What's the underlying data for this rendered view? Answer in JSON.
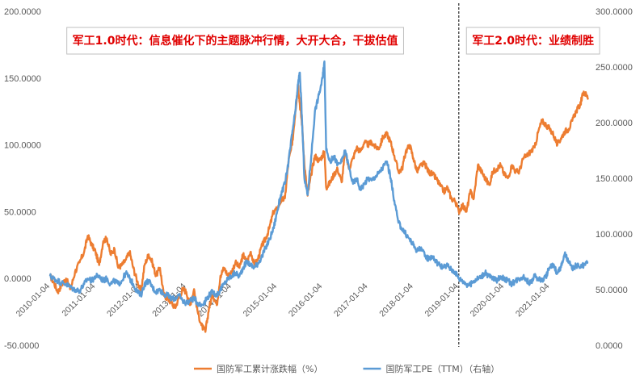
{
  "chart_data": {
    "type": "line",
    "title": "",
    "xlabel": "",
    "ylabel": "",
    "y_left": {
      "ylim": [
        -50,
        200
      ],
      "ticks": [
        "200.0000",
        "150.0000",
        "100.0000",
        "50.0000",
        "0.0000",
        "-50.0000"
      ],
      "tick_values": [
        200,
        150,
        100,
        50,
        0,
        -50
      ]
    },
    "y_right": {
      "ylim": [
        0,
        300
      ],
      "ticks": [
        "300.0000",
        "250.0000",
        "200.0000",
        "150.0000",
        "100.0000",
        "50.0000",
        "0.0000"
      ],
      "tick_values": [
        300,
        250,
        200,
        150,
        100,
        50,
        0
      ]
    },
    "x_ticks": [
      "2010-01-04",
      "2011-01-04",
      "2012-01-04",
      "2013-01-04",
      "2014-01-04",
      "2015-01-04",
      "2016-01-04",
      "2017-01-04",
      "2018-01-04",
      "2019-01-04",
      "2020-01-04",
      "2021-01-04"
    ],
    "x_tick_values": [
      2010.0,
      2011.0,
      2012.0,
      2013.0,
      2014.0,
      2015.0,
      2016.0,
      2017.0,
      2018.0,
      2019.0,
      2020.0,
      2021.0
    ],
    "x_range": [
      2010.0,
      2021.85
    ],
    "divider_x": 2019.0,
    "annotations": [
      {
        "text": "军工1.0时代：信息催化下的主题脉冲行情，大开大合，干拔估值",
        "anchor_x": 2010.35
      },
      {
        "text": "军工2.0时代：业绩制胜",
        "anchor_x": 2019.15
      }
    ],
    "legend_position": "bottom",
    "series": [
      {
        "name": "国防军工累计涨跌幅（%）",
        "axis": "left",
        "color": "#ed7d31",
        "x": [
          2010.0,
          2010.08,
          2010.17,
          2010.25,
          2010.35,
          2010.45,
          2010.55,
          2010.65,
          2010.75,
          2010.83,
          2010.92,
          2011.0,
          2011.08,
          2011.17,
          2011.25,
          2011.33,
          2011.42,
          2011.5,
          2011.58,
          2011.67,
          2011.75,
          2011.83,
          2011.92,
          2012.0,
          2012.08,
          2012.17,
          2012.25,
          2012.33,
          2012.42,
          2012.5,
          2012.58,
          2012.67,
          2012.75,
          2012.83,
          2012.92,
          2013.0,
          2013.08,
          2013.17,
          2013.25,
          2013.33,
          2013.42,
          2013.5,
          2013.58,
          2013.67,
          2013.75,
          2013.83,
          2013.92,
          2014.0,
          2014.08,
          2014.17,
          2014.25,
          2014.33,
          2014.42,
          2014.5,
          2014.58,
          2014.67,
          2014.75,
          2014.83,
          2014.92,
          2015.0,
          2015.08,
          2015.17,
          2015.25,
          2015.33,
          2015.4,
          2015.46,
          2015.5,
          2015.55,
          2015.6,
          2015.67,
          2015.75,
          2015.83,
          2015.92,
          2016.0,
          2016.04,
          2016.08,
          2016.17,
          2016.25,
          2016.33,
          2016.42,
          2016.5,
          2016.58,
          2016.67,
          2016.75,
          2016.83,
          2016.92,
          2017.0,
          2017.08,
          2017.17,
          2017.25,
          2017.33,
          2017.42,
          2017.5,
          2017.58,
          2017.67,
          2017.75,
          2017.83,
          2017.92,
          2018.0,
          2018.08,
          2018.17,
          2018.25,
          2018.33,
          2018.42,
          2018.5,
          2018.58,
          2018.67,
          2018.75,
          2018.83,
          2018.92,
          2019.0,
          2019.08,
          2019.17,
          2019.25,
          2019.33,
          2019.42,
          2019.5,
          2019.58,
          2019.67,
          2019.75,
          2019.83,
          2019.92,
          2020.0,
          2020.08,
          2020.17,
          2020.25,
          2020.33,
          2020.42,
          2020.5,
          2020.58,
          2020.67,
          2020.75,
          2020.83,
          2020.92,
          2021.0,
          2021.08,
          2021.17,
          2021.25,
          2021.33,
          2021.42,
          2021.5,
          2021.58,
          2021.67,
          2021.75,
          2021.85
        ],
        "values": [
          2,
          -3,
          -10,
          -5,
          0,
          -8,
          5,
          12,
          20,
          32,
          25,
          20,
          10,
          28,
          30,
          18,
          22,
          8,
          10,
          14,
          20,
          8,
          -2,
          -10,
          10,
          18,
          12,
          2,
          8,
          -12,
          -15,
          -18,
          -22,
          -15,
          -8,
          -10,
          -20,
          -8,
          -25,
          -35,
          -40,
          -22,
          -12,
          -20,
          2,
          8,
          2,
          5,
          12,
          8,
          18,
          12,
          20,
          10,
          15,
          25,
          30,
          38,
          50,
          52,
          58,
          60,
          88,
          100,
          125,
          145,
          130,
          115,
          85,
          62,
          78,
          92,
          88,
          92,
          95,
          68,
          72,
          78,
          82,
          72,
          95,
          82,
          90,
          98,
          95,
          102,
          100,
          102,
          98,
          98,
          106,
          108,
          102,
          92,
          80,
          82,
          95,
          100,
          90,
          80,
          85,
          86,
          80,
          78,
          75,
          70,
          65,
          68,
          60,
          58,
          50,
          55,
          50,
          65,
          60,
          85,
          80,
          75,
          70,
          80,
          82,
          85,
          78,
          75,
          85,
          80,
          80,
          90,
          92,
          95,
          98,
          110,
          118,
          115,
          112,
          108,
          100,
          105,
          110,
          112,
          118,
          125,
          130,
          140,
          135
        ]
      },
      {
        "name": "国防军工PE（TTM）（右轴）",
        "axis": "right",
        "color": "#5b9bd5",
        "x": [
          2010.0,
          2010.08,
          2010.17,
          2010.25,
          2010.35,
          2010.45,
          2010.55,
          2010.65,
          2010.75,
          2010.83,
          2010.92,
          2011.0,
          2011.08,
          2011.17,
          2011.25,
          2011.33,
          2011.42,
          2011.5,
          2011.58,
          2011.67,
          2011.75,
          2011.83,
          2011.92,
          2012.0,
          2012.08,
          2012.17,
          2012.25,
          2012.33,
          2012.42,
          2012.5,
          2012.58,
          2012.67,
          2012.75,
          2012.83,
          2012.92,
          2013.0,
          2013.08,
          2013.17,
          2013.25,
          2013.33,
          2013.42,
          2013.5,
          2013.58,
          2013.67,
          2013.75,
          2013.83,
          2013.92,
          2014.0,
          2014.08,
          2014.17,
          2014.25,
          2014.33,
          2014.42,
          2014.5,
          2014.58,
          2014.67,
          2014.75,
          2014.83,
          2014.92,
          2015.0,
          2015.08,
          2015.17,
          2015.25,
          2015.33,
          2015.4,
          2015.46,
          2015.5,
          2015.55,
          2015.6,
          2015.67,
          2015.75,
          2015.83,
          2015.92,
          2016.0,
          2016.04,
          2016.08,
          2016.17,
          2016.25,
          2016.33,
          2016.42,
          2016.5,
          2016.58,
          2016.67,
          2016.75,
          2016.83,
          2016.92,
          2017.0,
          2017.08,
          2017.17,
          2017.25,
          2017.33,
          2017.42,
          2017.5,
          2017.58,
          2017.67,
          2017.75,
          2017.83,
          2017.92,
          2018.0,
          2018.08,
          2018.17,
          2018.25,
          2018.33,
          2018.42,
          2018.5,
          2018.58,
          2018.67,
          2018.75,
          2018.83,
          2018.92,
          2019.0,
          2019.08,
          2019.17,
          2019.25,
          2019.33,
          2019.42,
          2019.5,
          2019.58,
          2019.67,
          2019.75,
          2019.83,
          2019.92,
          2020.0,
          2020.08,
          2020.17,
          2020.25,
          2020.33,
          2020.42,
          2020.5,
          2020.58,
          2020.67,
          2020.75,
          2020.83,
          2020.92,
          2021.0,
          2021.08,
          2021.17,
          2021.25,
          2021.33,
          2021.42,
          2021.5,
          2021.58,
          2021.67,
          2021.75,
          2021.85
        ],
        "values": [
          62,
          60,
          58,
          56,
          55,
          52,
          50,
          49,
          55,
          60,
          58,
          62,
          62,
          58,
          60,
          55,
          58,
          55,
          58,
          65,
          60,
          55,
          48,
          45,
          55,
          58,
          52,
          48,
          50,
          46,
          45,
          42,
          42,
          45,
          40,
          38,
          40,
          42,
          38,
          36,
          40,
          45,
          48,
          45,
          50,
          55,
          60,
          62,
          65,
          62,
          70,
          75,
          72,
          70,
          74,
          80,
          88,
          95,
          105,
          120,
          135,
          145,
          165,
          190,
          210,
          235,
          245,
          200,
          150,
          135,
          170,
          210,
          225,
          240,
          255,
          175,
          165,
          170,
          162,
          165,
          175,
          160,
          145,
          150,
          140,
          145,
          150,
          148,
          152,
          155,
          160,
          165,
          150,
          130,
          110,
          105,
          100,
          95,
          90,
          85,
          88,
          80,
          78,
          80,
          75,
          72,
          70,
          72,
          68,
          66,
          60,
          58,
          55,
          54,
          58,
          60,
          62,
          65,
          62,
          60,
          58,
          62,
          60,
          58,
          55,
          58,
          60,
          62,
          58,
          56,
          62,
          60,
          58,
          62,
          70,
          72,
          65,
          70,
          82,
          75,
          68,
          72,
          70,
          72,
          74
        ]
      }
    ]
  }
}
